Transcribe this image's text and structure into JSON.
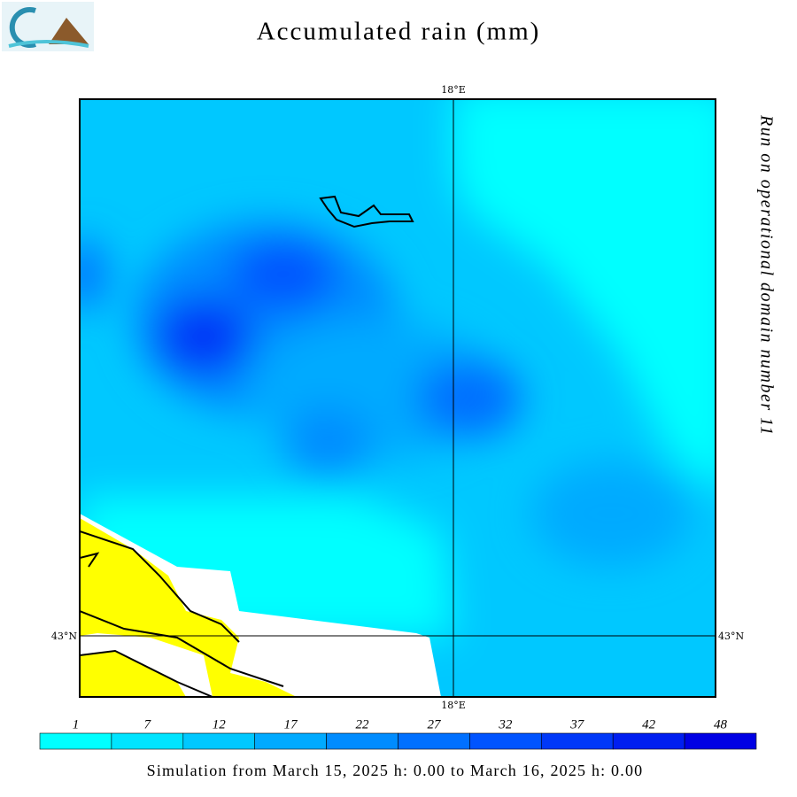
{
  "header": {
    "title": "Accumulated rain (mm)"
  },
  "map": {
    "lon_label": "18°E",
    "lat_label": "43°N"
  },
  "side_note": "Run on operational domain number 11",
  "legend": {
    "levels": [
      1,
      7,
      12,
      17,
      22,
      27,
      32,
      37,
      42,
      48
    ],
    "colors": [
      "#00ffff",
      "#00e4ff",
      "#00c8ff",
      "#00aaff",
      "#008cff",
      "#0070ff",
      "#0054ff",
      "#0038f8",
      "#001ef0",
      "#0000e4"
    ]
  },
  "footer": "Simulation from March 15, 2025 h: 0.00 to March 16, 2025 h: 0.00"
}
